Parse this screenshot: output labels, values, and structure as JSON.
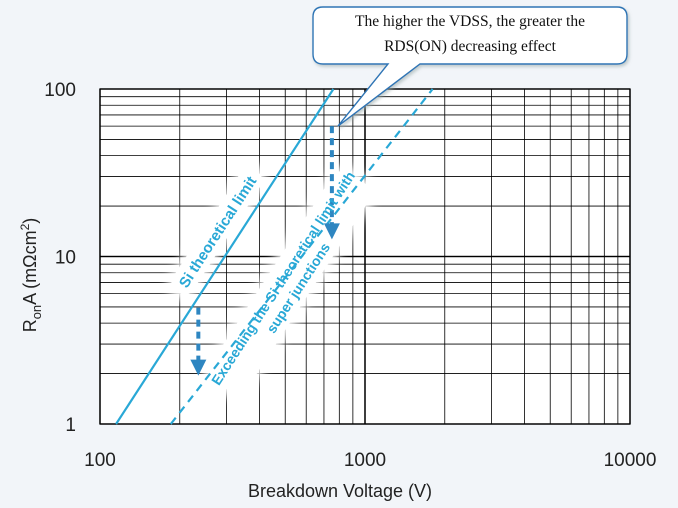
{
  "chart_data": {
    "type": "line",
    "x_scale": "log",
    "y_scale": "log",
    "xlim": [
      100,
      10000
    ],
    "ylim": [
      1,
      100
    ],
    "grid": true,
    "x_ticks": [
      {
        "value": 100,
        "label": "100"
      },
      {
        "value": 1000,
        "label": "1000"
      },
      {
        "value": 10000,
        "label": "10000"
      }
    ],
    "y_ticks": [
      {
        "value": 1,
        "label": "1"
      },
      {
        "value": 10,
        "label": "10"
      },
      {
        "value": 100,
        "label": "100"
      }
    ],
    "xlabel": "Breakdown Voltage (V)",
    "ylabel": {
      "main": "R",
      "sub": "on",
      "rest": "A (mΩcm",
      "sup": "2",
      "close": ")"
    },
    "series": [
      {
        "name": "Si theoretical limit",
        "style": "solid",
        "color": "#29a8d6",
        "points": [
          [
            115,
            1
          ],
          [
            760,
            100
          ]
        ]
      },
      {
        "name": "Exceeding the Si theoretical limit with super junctions",
        "style": "dashed",
        "color": "#29a8d6",
        "points": [
          [
            185,
            1
          ],
          [
            1800,
            100
          ]
        ]
      }
    ],
    "arrows": [
      {
        "x": 235,
        "y_from": 4.95,
        "y_to": 2.0,
        "color": "#2e86c1"
      },
      {
        "x": 750,
        "y_from": 60,
        "y_to": 13,
        "color": "#2e86c1"
      }
    ],
    "line_labels": [
      {
        "text": "Si theoretical limit",
        "x": 278,
        "y": 14
      },
      {
        "lines": [
          "Exceeding the Si theoretical limit with",
          "super junctions"
        ],
        "x": 520,
        "y": 7
      }
    ],
    "callout": {
      "lines": [
        "The higher the VDSS, the greater the",
        "RDS(ON) decreasing effect"
      ],
      "border_color": "#2e74b5",
      "pointer_target": [
        790,
        60
      ]
    }
  }
}
